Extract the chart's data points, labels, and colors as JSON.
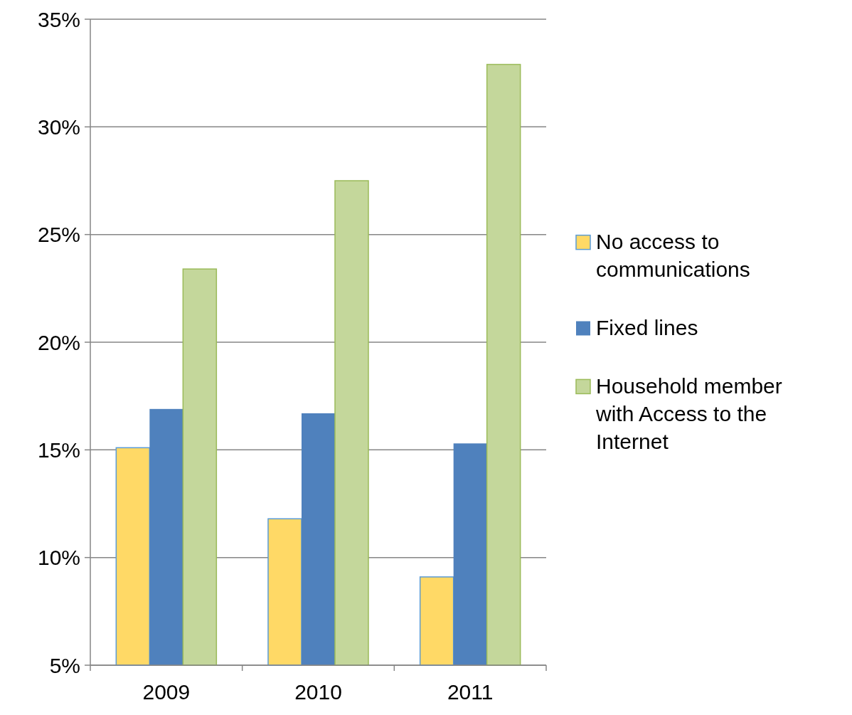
{
  "chart_data": {
    "type": "bar",
    "categories": [
      "2009",
      "2010",
      "2011"
    ],
    "series": [
      {
        "name": "No access to communications",
        "color": "#ffd966",
        "values": [
          15.1,
          11.8,
          9.1
        ]
      },
      {
        "name": "Fixed lines",
        "color": "#4f81bd",
        "values": [
          16.9,
          16.7,
          15.3
        ]
      },
      {
        "name": "Household member with Access to the Internet",
        "color": "#c4d79b",
        "values": [
          23.4,
          27.5,
          32.9
        ]
      }
    ],
    "ylim": [
      5,
      35
    ],
    "yticks": [
      {
        "value": 5,
        "label": "5%"
      },
      {
        "value": 10,
        "label": "10%"
      },
      {
        "value": 15,
        "label": "15%"
      },
      {
        "value": 20,
        "label": "20%"
      },
      {
        "value": 25,
        "label": "25%"
      },
      {
        "value": 30,
        "label": "30%"
      },
      {
        "value": 35,
        "label": "35%"
      }
    ],
    "grid": "y",
    "legend": "right"
  }
}
